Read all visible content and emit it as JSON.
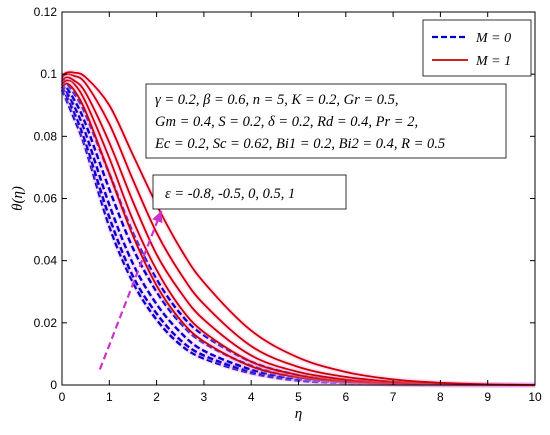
{
  "chart_data": {
    "type": "line",
    "xlabel": "η",
    "ylabel": "θ(η)",
    "xlim": [
      0,
      10
    ],
    "ylim": [
      0,
      0.12
    ],
    "xticks": [
      "0",
      "1",
      "2",
      "3",
      "4",
      "5",
      "6",
      "7",
      "8",
      "9",
      "10"
    ],
    "yticks": [
      "0",
      "0.02",
      "0.04",
      "0.06",
      "0.08",
      "0.1",
      "0.12"
    ],
    "grid": false,
    "legend_position": "top-right",
    "legend": [
      {
        "label": "M = 0",
        "color": "#0000cc",
        "style": "dashed"
      },
      {
        "label": "M = 1",
        "color": "#cc0000",
        "style": "solid"
      }
    ],
    "parameter_box": [
      "γ = 0.2, β = 0.6, n = 5, K = 0.2, Gr = 0.5,",
      "Gm = 0.4, S = 0.2, δ = 0.2, Rd = 0.4, Pr = 2,",
      "Ec = 0.2, Sc = 0.62, Bi1 = 0.2, Bi2 = 0.4, R = 0.5"
    ],
    "epsilon_label": "ε = -0.8, -0.5, 0, 0.5, 1",
    "arrow_color": "#cc33cc",
    "arrow_from": [
      0.8,
      0.005
    ],
    "arrow_to": [
      2.1,
      0.056
    ],
    "series": [
      {
        "group": "M = 0",
        "epsilon": -0.8,
        "color": "#0000cc",
        "style": "dashed",
        "x": [
          0,
          0.25,
          0.5,
          1,
          1.5,
          2,
          2.5,
          3,
          4,
          5,
          6,
          7,
          8,
          9,
          10
        ],
        "y": [
          0.095,
          0.086,
          0.076,
          0.051,
          0.033,
          0.021,
          0.013,
          0.0085,
          0.0038,
          0.0014,
          0.0006,
          0.0002,
          0.0001,
          0,
          0
        ]
      },
      {
        "group": "M = 0",
        "epsilon": -0.5,
        "color": "#0000cc",
        "style": "dashed",
        "x": [
          0,
          0.25,
          0.5,
          1,
          1.5,
          2,
          2.5,
          3,
          4,
          5,
          6,
          7,
          8,
          9,
          10
        ],
        "y": [
          0.096,
          0.088,
          0.078,
          0.054,
          0.035,
          0.023,
          0.0145,
          0.0095,
          0.0043,
          0.0017,
          0.0007,
          0.0003,
          0.0001,
          0,
          0
        ]
      },
      {
        "group": "M = 0",
        "epsilon": 0,
        "color": "#0000cc",
        "style": "dashed",
        "x": [
          0,
          0.25,
          0.5,
          1,
          1.5,
          2,
          2.5,
          3,
          4,
          5,
          6,
          7,
          8,
          9,
          10
        ],
        "y": [
          0.097,
          0.09,
          0.081,
          0.058,
          0.039,
          0.026,
          0.017,
          0.011,
          0.005,
          0.002,
          0.0009,
          0.0004,
          0.0001,
          0,
          0
        ]
      },
      {
        "group": "M = 0",
        "epsilon": 0.5,
        "color": "#0000cc",
        "style": "dashed",
        "x": [
          0,
          0.25,
          0.5,
          1,
          1.5,
          2,
          2.5,
          3,
          4,
          5,
          6,
          7,
          8,
          9,
          10
        ],
        "y": [
          0.098,
          0.092,
          0.084,
          0.063,
          0.044,
          0.03,
          0.02,
          0.0135,
          0.0062,
          0.0026,
          0.0011,
          0.0005,
          0.0002,
          0,
          0
        ]
      },
      {
        "group": "M = 0",
        "epsilon": 1,
        "color": "#0000cc",
        "style": "dashed",
        "x": [
          0,
          0.25,
          0.5,
          1,
          1.5,
          2,
          2.5,
          3,
          4,
          5,
          6,
          7,
          8,
          9,
          10
        ],
        "y": [
          0.099,
          0.094,
          0.087,
          0.068,
          0.049,
          0.034,
          0.023,
          0.016,
          0.0075,
          0.0032,
          0.0014,
          0.0006,
          0.0002,
          0,
          0
        ]
      },
      {
        "group": "M = 1",
        "epsilon": -0.8,
        "color": "#cc0000",
        "style": "solid",
        "x": [
          0,
          0.1,
          0.25,
          0.5,
          1,
          1.5,
          2,
          2.5,
          3,
          4,
          5,
          6,
          7,
          8,
          9,
          10
        ],
        "y": [
          0.096,
          0.097,
          0.095,
          0.088,
          0.068,
          0.048,
          0.032,
          0.021,
          0.014,
          0.006,
          0.0025,
          0.001,
          0.0004,
          0.0001,
          0,
          0
        ]
      },
      {
        "group": "M = 1",
        "epsilon": -0.5,
        "color": "#cc0000",
        "style": "solid",
        "x": [
          0,
          0.1,
          0.25,
          0.5,
          1,
          1.5,
          2,
          2.5,
          3,
          4,
          5,
          6,
          7,
          8,
          9,
          10
        ],
        "y": [
          0.097,
          0.098,
          0.097,
          0.091,
          0.073,
          0.053,
          0.037,
          0.025,
          0.017,
          0.0075,
          0.0032,
          0.0013,
          0.0005,
          0.0002,
          0,
          0
        ]
      },
      {
        "group": "M = 1",
        "epsilon": 0,
        "color": "#cc0000",
        "style": "solid",
        "x": [
          0,
          0.1,
          0.25,
          0.5,
          1,
          1.5,
          2,
          2.5,
          3,
          4,
          5,
          6,
          7,
          8,
          9,
          10
        ],
        "y": [
          0.098,
          0.099,
          0.098,
          0.094,
          0.078,
          0.059,
          0.042,
          0.03,
          0.021,
          0.0095,
          0.0042,
          0.0018,
          0.0007,
          0.0002,
          0,
          0
        ]
      },
      {
        "group": "M = 1",
        "epsilon": 0.5,
        "color": "#cc0000",
        "style": "solid",
        "x": [
          0,
          0.1,
          0.25,
          0.5,
          1,
          1.5,
          2,
          2.5,
          3,
          4,
          5,
          6,
          7,
          8,
          9,
          10
        ],
        "y": [
          0.099,
          0.1,
          0.0995,
          0.097,
          0.084,
          0.066,
          0.049,
          0.036,
          0.026,
          0.0125,
          0.0058,
          0.0026,
          0.0011,
          0.0004,
          0.0001,
          0
        ]
      },
      {
        "group": "M = 1",
        "epsilon": 1,
        "color": "#cc0000",
        "style": "solid",
        "x": [
          0,
          0.1,
          0.25,
          0.5,
          1,
          1.5,
          2,
          2.5,
          3,
          4,
          5,
          6,
          7,
          8,
          9,
          10
        ],
        "y": [
          0.0995,
          0.1005,
          0.1005,
          0.099,
          0.09,
          0.074,
          0.058,
          0.044,
          0.033,
          0.0175,
          0.0088,
          0.0042,
          0.0018,
          0.0007,
          0.0002,
          0
        ]
      }
    ]
  }
}
